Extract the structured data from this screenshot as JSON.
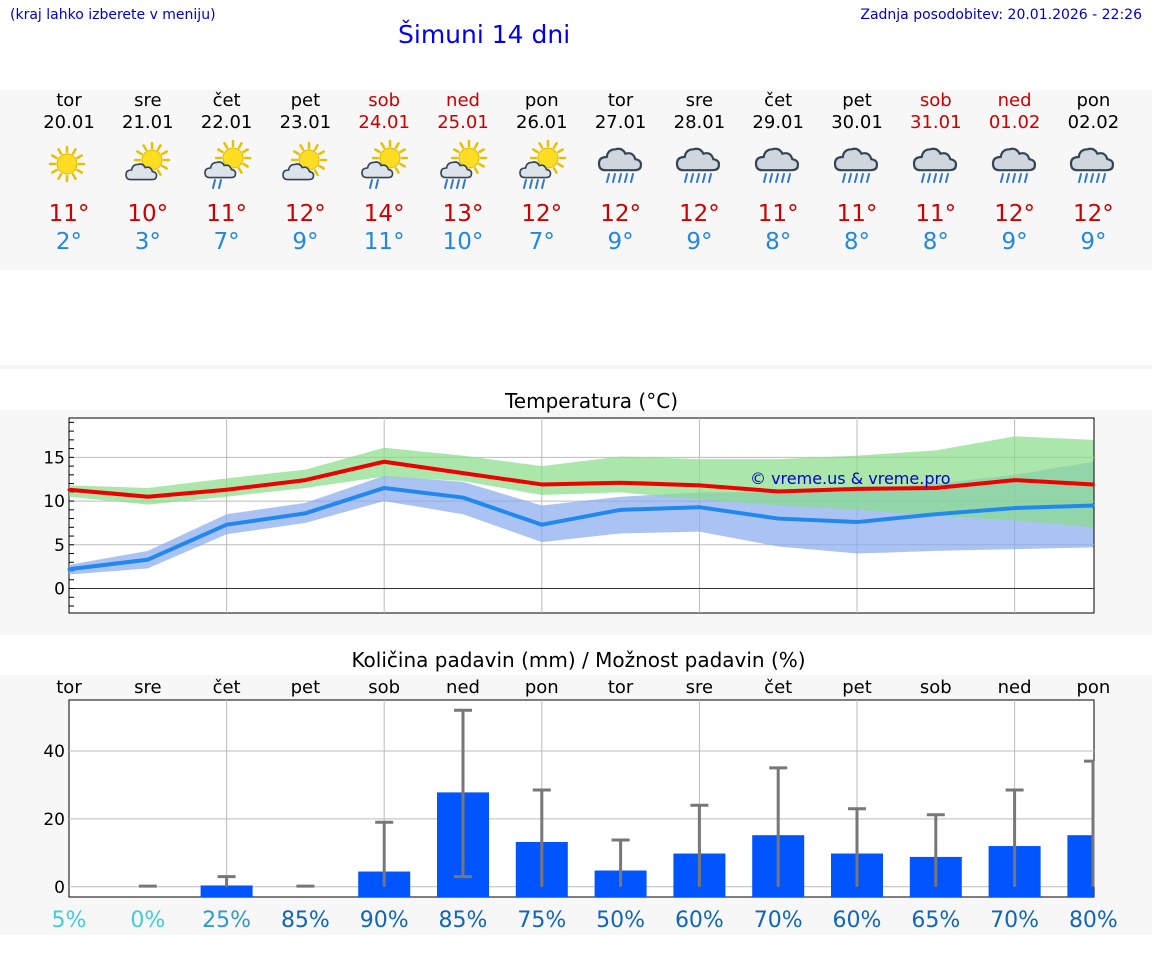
{
  "header": {
    "menu_hint": "(kraj lahko izberete v meniju)",
    "title": "Šimuni 14 dni",
    "last_update": "Zadnja posodobitev: 20.01.2026 - 22:26"
  },
  "days": [
    {
      "name": "tor",
      "date": "20.01",
      "weekend": false,
      "icon": "sunny",
      "tmax": "11°",
      "tmin": "2°"
    },
    {
      "name": "sre",
      "date": "21.01",
      "weekend": false,
      "icon": "partly-cloudy",
      "tmax": "10°",
      "tmin": "3°"
    },
    {
      "name": "čet",
      "date": "22.01",
      "weekend": false,
      "icon": "partly-cloudy-rain",
      "tmax": "11°",
      "tmin": "7°"
    },
    {
      "name": "pet",
      "date": "23.01",
      "weekend": false,
      "icon": "partly-cloudy",
      "tmax": "12°",
      "tmin": "9°"
    },
    {
      "name": "sob",
      "date": "24.01",
      "weekend": true,
      "icon": "partly-cloudy-rain",
      "tmax": "14°",
      "tmin": "11°"
    },
    {
      "name": "ned",
      "date": "25.01",
      "weekend": true,
      "icon": "partly-cloudy-heavy-rain",
      "tmax": "13°",
      "tmin": "10°"
    },
    {
      "name": "pon",
      "date": "26.01",
      "weekend": false,
      "icon": "partly-cloudy-heavy-rain",
      "tmax": "12°",
      "tmin": "7°"
    },
    {
      "name": "tor",
      "date": "27.01",
      "weekend": false,
      "icon": "rain-cloud",
      "tmax": "12°",
      "tmin": "9°"
    },
    {
      "name": "sre",
      "date": "28.01",
      "weekend": false,
      "icon": "rain-cloud",
      "tmax": "12°",
      "tmin": "9°"
    },
    {
      "name": "čet",
      "date": "29.01",
      "weekend": false,
      "icon": "rain-cloud",
      "tmax": "11°",
      "tmin": "8°"
    },
    {
      "name": "pet",
      "date": "30.01",
      "weekend": false,
      "icon": "rain-cloud",
      "tmax": "11°",
      "tmin": "8°"
    },
    {
      "name": "sob",
      "date": "31.01",
      "weekend": true,
      "icon": "rain-cloud",
      "tmax": "11°",
      "tmin": "8°"
    },
    {
      "name": "ned",
      "date": "01.02",
      "weekend": true,
      "icon": "rain-cloud",
      "tmax": "12°",
      "tmin": "9°"
    },
    {
      "name": "pon",
      "date": "02.02",
      "weekend": false,
      "icon": "rain-cloud",
      "tmax": "12°",
      "tmin": "9°"
    }
  ],
  "colors": {
    "max_line": "#ee0000",
    "min_line": "#2288ee",
    "max_band": "#88dd88",
    "min_band": "#88aaee",
    "bar": "#0055ff",
    "whisker": "#777777"
  },
  "chart_data": [
    {
      "type": "line",
      "title": "Temperatura (°C)",
      "credit": "© vreme.us & vreme.pro",
      "x": [
        0,
        1,
        2,
        3,
        4,
        5,
        6,
        7,
        8,
        9,
        10,
        11,
        12,
        13
      ],
      "ylim": [
        -2.8,
        19.5
      ],
      "yticks": [
        0,
        5,
        10,
        15
      ],
      "series": [
        {
          "name": "max",
          "values": [
            11.3,
            10.5,
            11.3,
            12.4,
            14.5,
            13.2,
            11.9,
            12.1,
            11.8,
            11.1,
            11.4,
            11.5,
            12.4,
            11.9
          ],
          "band_low": [
            10.5,
            9.6,
            10.5,
            11.5,
            12.8,
            12.3,
            10.7,
            11.0,
            10.2,
            9.5,
            9.0,
            8.3,
            7.8,
            7.0
          ],
          "band_high": [
            11.8,
            11.5,
            12.6,
            13.6,
            16.1,
            15.2,
            14.0,
            15.1,
            14.8,
            14.8,
            15.2,
            15.8,
            17.4,
            17.0
          ]
        },
        {
          "name": "min",
          "values": [
            2.2,
            3.3,
            7.3,
            8.6,
            11.5,
            10.4,
            7.3,
            9.0,
            9.3,
            8.0,
            7.6,
            8.5,
            9.2,
            9.5
          ],
          "band_low": [
            1.6,
            2.3,
            6.2,
            7.5,
            10.0,
            8.5,
            5.3,
            6.3,
            6.5,
            4.8,
            4.0,
            4.3,
            4.5,
            4.7
          ],
          "band_high": [
            2.7,
            4.3,
            8.5,
            9.8,
            12.9,
            12.2,
            9.5,
            10.5,
            11.0,
            11.0,
            11.3,
            12.0,
            13.0,
            14.5
          ]
        }
      ]
    },
    {
      "type": "bar",
      "title": "Količina padavin (mm) / Možnost padavin (%)",
      "categories": [
        "tor",
        "sre",
        "čet",
        "pet",
        "sob",
        "ned",
        "pon",
        "tor",
        "sre",
        "čet",
        "pet",
        "sob",
        "ned",
        "pon"
      ],
      "values": [
        0,
        0,
        0.4,
        0,
        4.5,
        27.8,
        13.2,
        4.8,
        9.8,
        15.2,
        9.8,
        8.8,
        12.0,
        15.2
      ],
      "err_low": [
        0,
        0,
        0,
        0,
        0,
        3,
        0,
        0,
        0,
        0,
        0,
        0,
        0,
        0
      ],
      "err_high": [
        0,
        0.2,
        3,
        0.2,
        19,
        52,
        28.5,
        13.8,
        24,
        35,
        23,
        21.2,
        28.5,
        37
      ],
      "probability": [
        "5%",
        "0%",
        "25%",
        "85%",
        "90%",
        "85%",
        "75%",
        "50%",
        "60%",
        "70%",
        "60%",
        "65%",
        "70%",
        "80%"
      ],
      "probability_values": [
        5,
        0,
        25,
        85,
        90,
        85,
        75,
        50,
        60,
        70,
        60,
        65,
        70,
        80
      ],
      "ylim": [
        -3,
        55
      ],
      "yticks": [
        0,
        20,
        40
      ]
    }
  ]
}
